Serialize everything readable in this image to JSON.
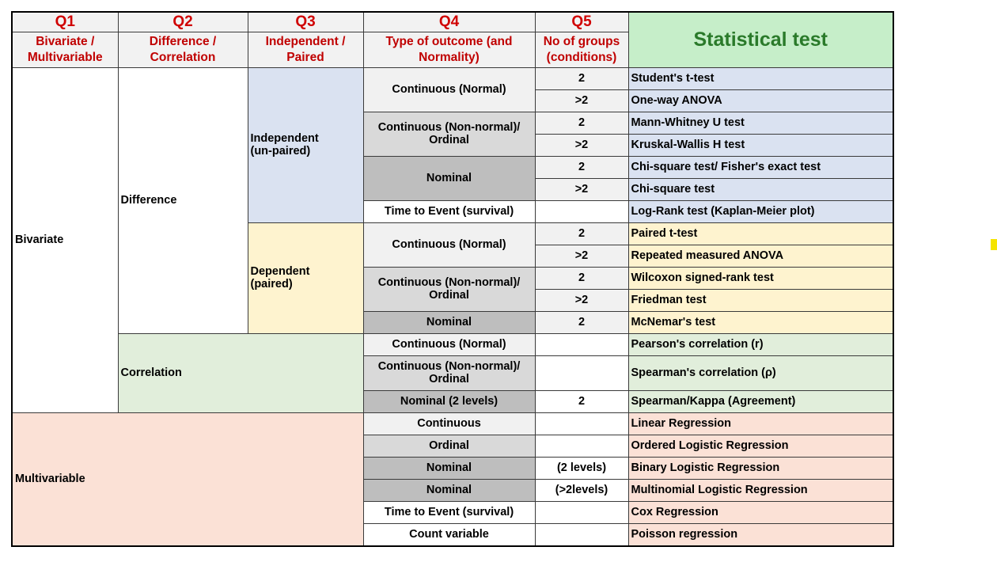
{
  "header": {
    "q1": "Q1",
    "q2": "Q2",
    "q3": "Q3",
    "q4": "Q4",
    "q5": "Q5",
    "q1_sub_a": "Bivariate /",
    "q1_sub_b": "Multivariable",
    "q2_sub_a": "Difference /",
    "q2_sub_b": "Correlation",
    "q3_sub_a": "Independent /",
    "q3_sub_b": "Paired",
    "q4_sub_a": "Type of outcome (and",
    "q4_sub_b": "Normality)",
    "q5_sub_a": "No of groups",
    "q5_sub_b": "(conditions)",
    "test_title": "Statistical test"
  },
  "q1": {
    "bivariate": "Bivariate",
    "multivariable": "Multivariable"
  },
  "q2": {
    "difference": "Difference",
    "correlation": "Correlation"
  },
  "q3": {
    "independent_a": "Independent",
    "independent_b": "(un-paired)",
    "dependent_a": "Dependent",
    "dependent_b": "(paired)"
  },
  "outcomes": {
    "cont_normal": "Continuous (Normal)",
    "cont_nonnormal_a": "Continuous (Non-normal)/",
    "cont_nonnormal_b": "Ordinal",
    "nominal": "Nominal",
    "time_to_event": "Time to Event (survival)",
    "nominal_2levels": "Nominal (2 levels)",
    "continuous": "Continuous",
    "ordinal": "Ordinal",
    "count": "Count variable"
  },
  "groups": {
    "two": "2",
    "more": ">2",
    "two_levels": "(2 levels)",
    "more_levels": "(>2levels)"
  },
  "tests": {
    "students_t": "Student's t-test",
    "one_way_anova": "One-way ANOVA",
    "mann_whitney": "Mann-Whitney U test",
    "kruskal_wallis": "Kruskal-Wallis H test",
    "chi_fisher": "Chi-square test/ Fisher's exact test",
    "chi_square": "Chi-square test",
    "log_rank": "Log-Rank test (Kaplan-Meier plot)",
    "paired_t": "Paired t-test",
    "rm_anova": "Repeated measured ANOVA",
    "wilcoxon": "Wilcoxon signed-rank test",
    "friedman": "Friedman test",
    "mcnemar": "McNemar's test",
    "pearson": "Pearson's correlation (r)",
    "spearman": "Spearman's correlation  (ρ)",
    "kappa": "Spearman/Kappa (Agreement)",
    "linear": "Linear Regression",
    "ordered_logistic": "Ordered Logistic Regression",
    "binary_logistic": "Binary Logistic Regression",
    "multinomial_logistic": "Multinomial Logistic Regression",
    "cox": "Cox Regression",
    "poisson": "Poisson regression"
  },
  "colors": {
    "header_red": "#d00000",
    "title_green": "#2a7a2a",
    "two_red": "#c8161d",
    "more_blue": "#1f4e8c",
    "independent_bg": "#dae2f1",
    "dependent_bg": "#fef3cf",
    "correlation_bg": "#e1eedb",
    "multivariable_bg": "#fbe1d6"
  }
}
